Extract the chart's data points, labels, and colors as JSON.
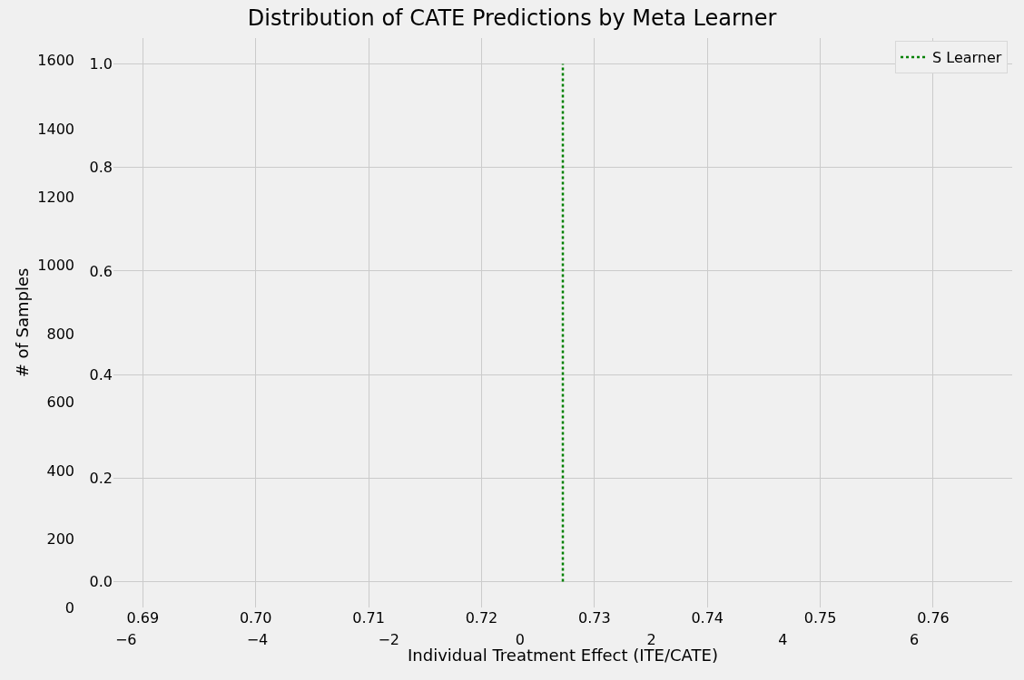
{
  "chart_data": {
    "type": "line",
    "title": "Distribution of CATE Predictions by Meta Learner",
    "xlabel": "Individual Treatment Effect (ITE/CATE)",
    "y2label": "# of Samples",
    "series": [
      {
        "name": "S Learner",
        "color": "#008000",
        "x": [
          0.7272,
          0.7272
        ],
        "values": [
          0,
          1
        ],
        "line_style": "dotted"
      }
    ],
    "xlim": [
      0.6874,
      0.767
    ],
    "xticks": [
      0.69,
      {
        "value": 0.7,
        "label": "0.70"
      },
      0.71,
      0.72,
      0.73,
      0.74,
      0.75,
      0.76
    ],
    "ylim": [
      -0.05,
      1.05
    ],
    "yticks": [
      {
        "value": 0,
        "label": "0.0"
      },
      0.2,
      0.4,
      0.6,
      0.8,
      {
        "value": 1,
        "label": "1.0"
      }
    ],
    "x2lim": [
      -6.19,
      7.49
    ],
    "x2ticks": [
      {
        "value": -6,
        "label": "−6"
      },
      {
        "value": -4,
        "label": "−4"
      },
      {
        "value": -2,
        "label": "−2"
      },
      0,
      2,
      4,
      6
    ],
    "y2lim": [
      0,
      1665
    ],
    "y2ticks": [
      0,
      200,
      400,
      600,
      800,
      1000,
      1200,
      1400,
      1600
    ],
    "grid": true,
    "legend": "top right",
    "marker": "none"
  }
}
